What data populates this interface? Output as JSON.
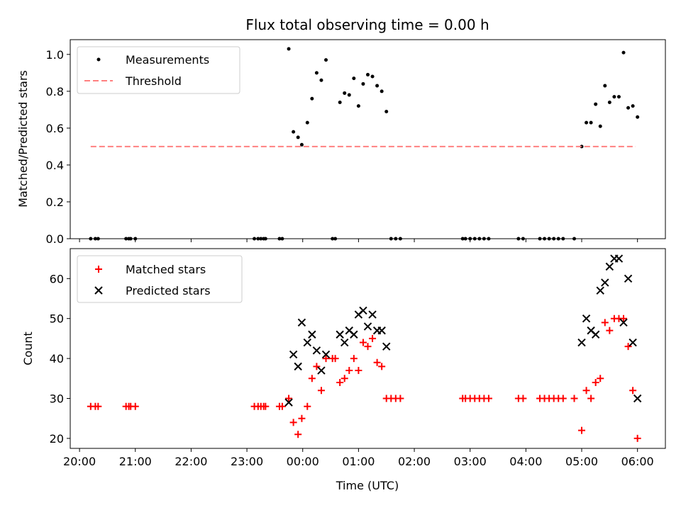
{
  "chart_data": [
    {
      "type": "scatter",
      "title": "Flux total observing time = 0.00 h",
      "xlabel": "",
      "ylabel": "Matched/Predicted stars",
      "ylim": [
        0,
        1.08
      ],
      "yticks": [
        "0.0",
        "0.2",
        "0.4",
        "0.6",
        "0.8",
        "1.0"
      ],
      "ytick_values": [
        0,
        0.2,
        0.4,
        0.6,
        0.8,
        1.0
      ],
      "legend_position": "top-left",
      "series": [
        {
          "name": "Measurements",
          "marker": "dot",
          "color": "#000000",
          "points": [
            [
              "20:12",
              0
            ],
            [
              "20:17",
              0
            ],
            [
              "20:20",
              0
            ],
            [
              "20:50",
              0
            ],
            [
              "20:53",
              0
            ],
            [
              "20:55",
              0
            ],
            [
              "21:00",
              0
            ],
            [
              "23:08",
              0
            ],
            [
              "23:12",
              0
            ],
            [
              "23:15",
              0
            ],
            [
              "23:18",
              0
            ],
            [
              "23:20",
              0
            ],
            [
              "23:35",
              0
            ],
            [
              "23:38",
              0
            ],
            [
              "23:45",
              1.03
            ],
            [
              "23:50",
              0.58
            ],
            [
              "23:55",
              0.55
            ],
            [
              "23:59",
              0.51
            ],
            [
              "00:05",
              0.63
            ],
            [
              "00:10",
              0.76
            ],
            [
              "00:15",
              0.9
            ],
            [
              "00:20",
              0.86
            ],
            [
              "00:25",
              0.97
            ],
            [
              "00:32",
              0
            ],
            [
              "00:35",
              0
            ],
            [
              "00:40",
              0.74
            ],
            [
              "00:45",
              0.79
            ],
            [
              "00:50",
              0.78
            ],
            [
              "00:55",
              0.87
            ],
            [
              "01:00",
              0.72
            ],
            [
              "01:05",
              0.84
            ],
            [
              "01:10",
              0.89
            ],
            [
              "01:15",
              0.88
            ],
            [
              "01:20",
              0.83
            ],
            [
              "01:25",
              0.8
            ],
            [
              "01:30",
              0.69
            ],
            [
              "01:35",
              0
            ],
            [
              "01:40",
              0
            ],
            [
              "01:45",
              0
            ],
            [
              "02:52",
              0
            ],
            [
              "02:55",
              0
            ],
            [
              "03:00",
              0
            ],
            [
              "03:05",
              0
            ],
            [
              "03:10",
              0
            ],
            [
              "03:15",
              0
            ],
            [
              "03:20",
              0
            ],
            [
              "03:52",
              0
            ],
            [
              "03:57",
              0
            ],
            [
              "04:15",
              0
            ],
            [
              "04:20",
              0
            ],
            [
              "04:25",
              0
            ],
            [
              "04:30",
              0
            ],
            [
              "04:35",
              0
            ],
            [
              "04:40",
              0
            ],
            [
              "04:52",
              0
            ],
            [
              "05:00",
              0.5
            ],
            [
              "05:05",
              0.63
            ],
            [
              "05:10",
              0.63
            ],
            [
              "05:15",
              0.73
            ],
            [
              "05:20",
              0.61
            ],
            [
              "05:25",
              0.83
            ],
            [
              "05:30",
              0.74
            ],
            [
              "05:35",
              0.77
            ],
            [
              "05:40",
              0.77
            ],
            [
              "05:45",
              1.01
            ],
            [
              "05:50",
              0.71
            ],
            [
              "05:55",
              0.72
            ],
            [
              "06:00",
              0.66
            ]
          ]
        },
        {
          "name": "Threshold",
          "style": "dashed",
          "color": "#ff8080",
          "points": [
            [
              "20:12",
              0.5
            ],
            [
              "05:58",
              0.5
            ]
          ]
        }
      ]
    },
    {
      "type": "scatter",
      "title": "",
      "xlabel": "Time (UTC)",
      "ylabel": "Count",
      "ylim": [
        17.5,
        67.5
      ],
      "yticks": [
        "20",
        "30",
        "40",
        "50",
        "60"
      ],
      "ytick_values": [
        20,
        30,
        40,
        50,
        60
      ],
      "legend_position": "top-left",
      "series": [
        {
          "name": "Matched stars",
          "marker": "plus",
          "color": "#ff0000",
          "points": [
            [
              "20:12",
              28
            ],
            [
              "20:17",
              28
            ],
            [
              "20:20",
              28
            ],
            [
              "20:50",
              28
            ],
            [
              "20:53",
              28
            ],
            [
              "20:55",
              28
            ],
            [
              "21:00",
              28
            ],
            [
              "23:08",
              28
            ],
            [
              "23:12",
              28
            ],
            [
              "23:15",
              28
            ],
            [
              "23:18",
              28
            ],
            [
              "23:20",
              28
            ],
            [
              "23:35",
              28
            ],
            [
              "23:38",
              28
            ],
            [
              "23:45",
              30
            ],
            [
              "23:50",
              24
            ],
            [
              "23:55",
              21
            ],
            [
              "23:59",
              25
            ],
            [
              "00:05",
              28
            ],
            [
              "00:10",
              35
            ],
            [
              "00:15",
              38
            ],
            [
              "00:20",
              32
            ],
            [
              "00:25",
              40
            ],
            [
              "00:32",
              40
            ],
            [
              "00:35",
              40
            ],
            [
              "00:40",
              34
            ],
            [
              "00:45",
              35
            ],
            [
              "00:50",
              37
            ],
            [
              "00:55",
              40
            ],
            [
              "01:00",
              37
            ],
            [
              "01:05",
              44
            ],
            [
              "01:10",
              43
            ],
            [
              "01:15",
              45
            ],
            [
              "01:20",
              39
            ],
            [
              "01:25",
              38
            ],
            [
              "01:30",
              30
            ],
            [
              "01:35",
              30
            ],
            [
              "01:40",
              30
            ],
            [
              "01:45",
              30
            ],
            [
              "02:52",
              30
            ],
            [
              "02:55",
              30
            ],
            [
              "03:00",
              30
            ],
            [
              "03:05",
              30
            ],
            [
              "03:10",
              30
            ],
            [
              "03:15",
              30
            ],
            [
              "03:20",
              30
            ],
            [
              "03:52",
              30
            ],
            [
              "03:57",
              30
            ],
            [
              "04:15",
              30
            ],
            [
              "04:20",
              30
            ],
            [
              "04:25",
              30
            ],
            [
              "04:30",
              30
            ],
            [
              "04:35",
              30
            ],
            [
              "04:40",
              30
            ],
            [
              "04:52",
              30
            ],
            [
              "05:00",
              22
            ],
            [
              "05:05",
              32
            ],
            [
              "05:10",
              30
            ],
            [
              "05:15",
              34
            ],
            [
              "05:20",
              35
            ],
            [
              "05:25",
              49
            ],
            [
              "05:30",
              47
            ],
            [
              "05:35",
              50
            ],
            [
              "05:40",
              50
            ],
            [
              "05:45",
              50
            ],
            [
              "05:50",
              43
            ],
            [
              "05:55",
              32
            ],
            [
              "06:00",
              20
            ]
          ]
        },
        {
          "name": "Predicted stars",
          "marker": "x",
          "color": "#000000",
          "points": [
            [
              "23:45",
              29
            ],
            [
              "23:50",
              41
            ],
            [
              "23:55",
              38
            ],
            [
              "23:59",
              49
            ],
            [
              "00:05",
              44
            ],
            [
              "00:10",
              46
            ],
            [
              "00:15",
              42
            ],
            [
              "00:20",
              37
            ],
            [
              "00:25",
              41
            ],
            [
              "00:40",
              46
            ],
            [
              "00:45",
              44
            ],
            [
              "00:50",
              47
            ],
            [
              "00:55",
              46
            ],
            [
              "01:00",
              51
            ],
            [
              "01:05",
              52
            ],
            [
              "01:10",
              48
            ],
            [
              "01:15",
              51
            ],
            [
              "01:20",
              47
            ],
            [
              "01:25",
              47
            ],
            [
              "01:30",
              43
            ],
            [
              "05:00",
              44
            ],
            [
              "05:05",
              50
            ],
            [
              "05:10",
              47
            ],
            [
              "05:15",
              46
            ],
            [
              "05:20",
              57
            ],
            [
              "05:25",
              59
            ],
            [
              "05:30",
              63
            ],
            [
              "05:35",
              65
            ],
            [
              "05:40",
              65
            ],
            [
              "05:45",
              49
            ],
            [
              "05:50",
              60
            ],
            [
              "05:55",
              44
            ],
            [
              "06:00",
              30
            ]
          ]
        }
      ]
    }
  ],
  "x_axis": {
    "start": "19:50",
    "end": "06:30",
    "ticks": [
      "20:00",
      "21:00",
      "22:00",
      "23:00",
      "00:00",
      "01:00",
      "02:00",
      "03:00",
      "04:00",
      "05:00",
      "06:00"
    ]
  }
}
